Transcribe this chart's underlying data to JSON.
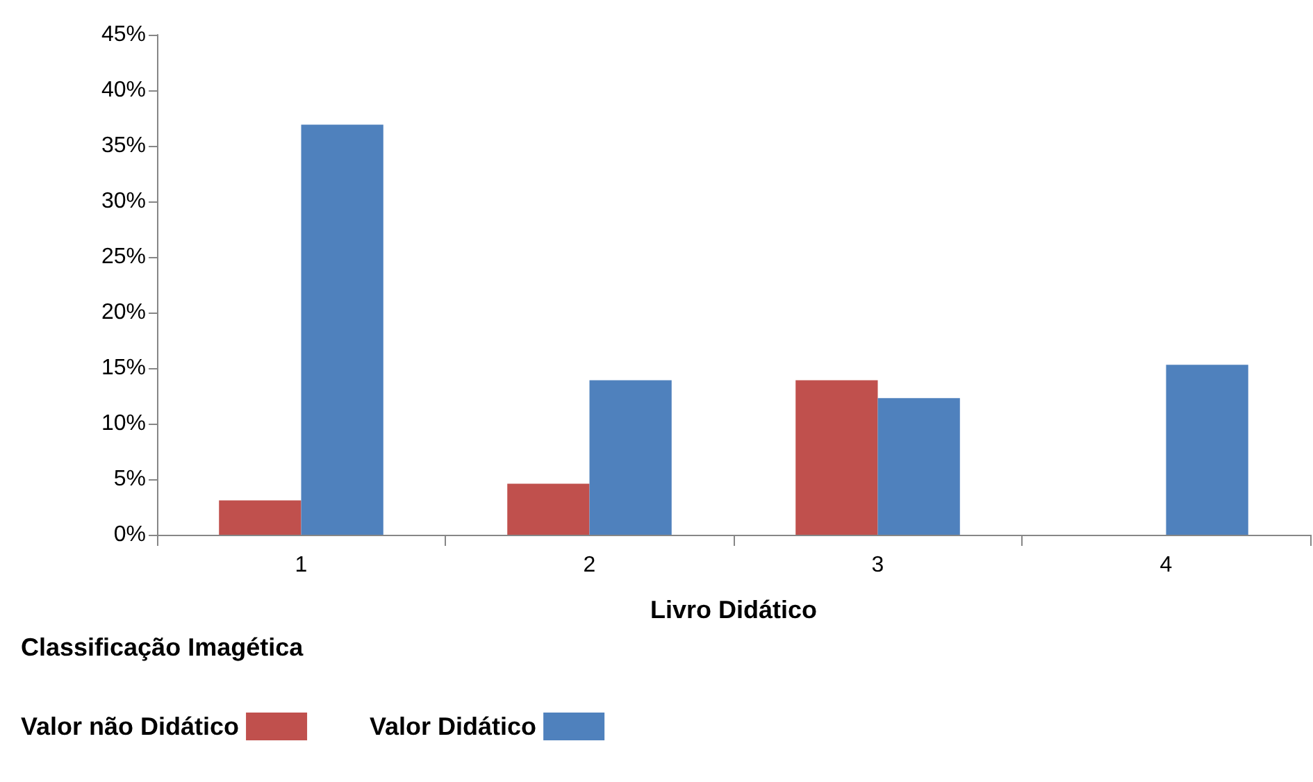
{
  "chart_data": {
    "type": "bar",
    "xlabel": "Livro Didático",
    "legend_title": "Classificação Imagética",
    "categories": [
      "1",
      "2",
      "3",
      "4"
    ],
    "series": [
      {
        "name": "Valor não Didático",
        "color": "#c0504d",
        "values": [
          3.1,
          4.6,
          13.9,
          0
        ]
      },
      {
        "name": "Valor Didático",
        "color": "#4f81bd",
        "values": [
          36.9,
          13.9,
          12.3,
          15.3
        ]
      }
    ],
    "ylim": [
      0,
      45
    ],
    "yticks": [
      {
        "value": 0,
        "label": "0%"
      },
      {
        "value": 5,
        "label": "5%"
      },
      {
        "value": 10,
        "label": "10%"
      },
      {
        "value": 15,
        "label": "15%"
      },
      {
        "value": 20,
        "label": "20%"
      },
      {
        "value": 25,
        "label": "25%"
      },
      {
        "value": 30,
        "label": "30%"
      },
      {
        "value": 35,
        "label": "35%"
      },
      {
        "value": 40,
        "label": "40%"
      },
      {
        "value": 45,
        "label": "45%"
      }
    ],
    "grid": false,
    "legend": "bottom left"
  }
}
